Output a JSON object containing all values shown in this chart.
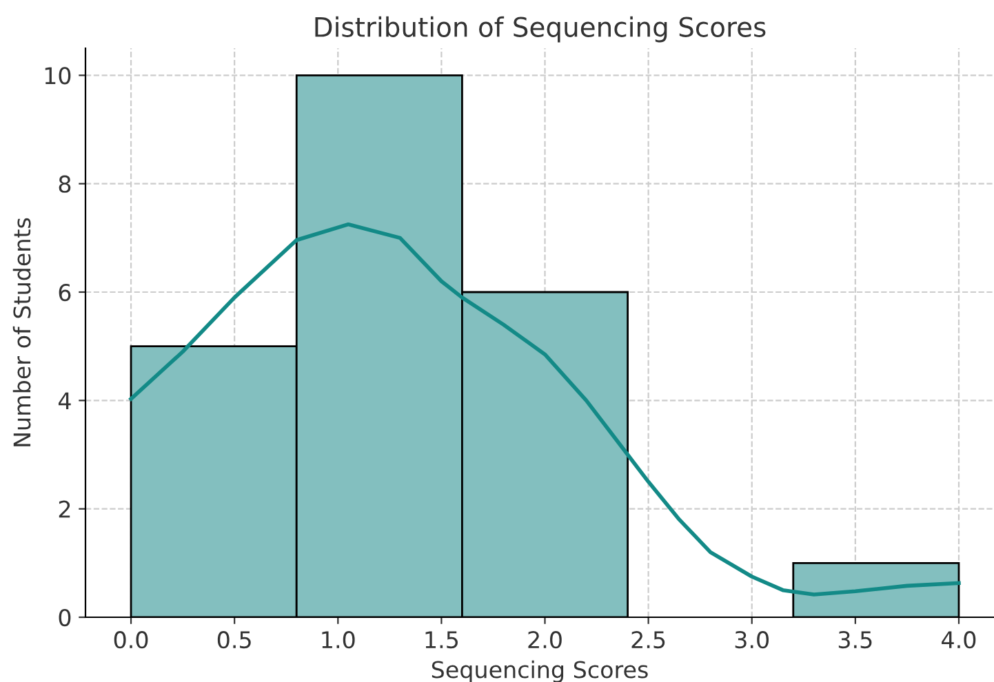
{
  "chart_data": {
    "type": "histogram",
    "title": "Distribution of Sequencing Scores",
    "xlabel": "Sequencing Scores",
    "ylabel": "Number of Students",
    "bins": [
      0,
      0.8,
      1.6,
      2.4,
      3.2,
      4.0
    ],
    "values": [
      5,
      10,
      6,
      0,
      1
    ],
    "color": "#83bfbf",
    "series": [
      {
        "type": "line",
        "color": "#138a87",
        "x": [
          0,
          0.25,
          0.5,
          0.8,
          1.05,
          1.3,
          1.5,
          1.6,
          1.8,
          2.0,
          2.2,
          2.4,
          2.5,
          2.65,
          2.8,
          3.0,
          3.15,
          3.3,
          3.5,
          3.75,
          4.0
        ],
        "values": [
          4.03,
          4.9,
          5.9,
          6.96,
          7.25,
          7.0,
          6.2,
          5.9,
          5.4,
          4.85,
          4.0,
          3.0,
          2.5,
          1.8,
          1.2,
          0.75,
          0.5,
          0.42,
          0.48,
          0.58,
          0.63
        ]
      }
    ],
    "xlim": [
      -0.22,
      4.17
    ],
    "ylim": [
      0,
      10.5
    ],
    "xticks": [
      {
        "value": 0,
        "label": "0.0"
      },
      {
        "value": 0.5,
        "label": "0.5"
      },
      {
        "value": 1,
        "label": "1.0"
      },
      {
        "value": 1.5,
        "label": "1.5"
      },
      {
        "value": 2,
        "label": "2.0"
      },
      {
        "value": 2.5,
        "label": "2.5"
      },
      {
        "value": 3,
        "label": "3.0"
      },
      {
        "value": 3.5,
        "label": "3.5"
      },
      {
        "value": 4,
        "label": "4.0"
      }
    ],
    "yticks": [
      0,
      2,
      4,
      6,
      8,
      10
    ],
    "grid": true,
    "line_style": "solid",
    "marker": "none"
  }
}
